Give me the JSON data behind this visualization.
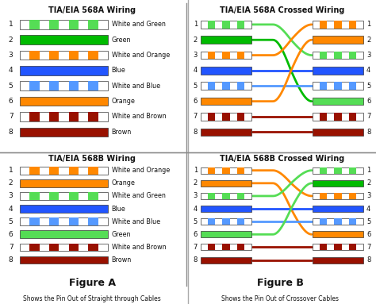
{
  "bg": "#ffffff",
  "titles": {
    "tl": "TIA/EIA 568A Wiring",
    "tr": "TIA/EIA 568A Crossed Wiring",
    "bl": "TIA/EIA 568B Wiring",
    "br": "TIA/EIA 568B Crossed Wiring"
  },
  "fig_a": "Figure A",
  "fig_b": "Figure B",
  "cap_a": "Shows the Pin Out of Straight through Cables",
  "cap_b": "Shows the Pin Out of Crossover Cables",
  "568a_wire_colors": [
    "#55dd55",
    "#00bb00",
    "#ff8800",
    "#2255ff",
    "#5599ff",
    "#ff8800",
    "#991100",
    "#991100"
  ],
  "568a_solid": [
    false,
    true,
    false,
    true,
    false,
    true,
    false,
    true
  ],
  "568a_labels": [
    "White and Green",
    "Green",
    "White and Orange",
    "Blue",
    "White and Blue",
    "Orange",
    "White and Brown",
    "Brown"
  ],
  "568b_wire_colors": [
    "#ff8800",
    "#ff8800",
    "#55dd55",
    "#2255ff",
    "#5599ff",
    "#55dd55",
    "#991100",
    "#991100"
  ],
  "568b_solid": [
    false,
    true,
    false,
    true,
    false,
    true,
    false,
    true
  ],
  "568b_labels": [
    "White and Orange",
    "Orange",
    "White and Green",
    "Blue",
    "White and Blue",
    "Green",
    "White and Brown",
    "Brown"
  ],
  "cross_568a_map": [
    2,
    5,
    0,
    3,
    4,
    1,
    6,
    7
  ],
  "cross_568b_map": [
    2,
    5,
    0,
    3,
    4,
    1,
    6,
    7
  ],
  "divider_color": "#888888"
}
